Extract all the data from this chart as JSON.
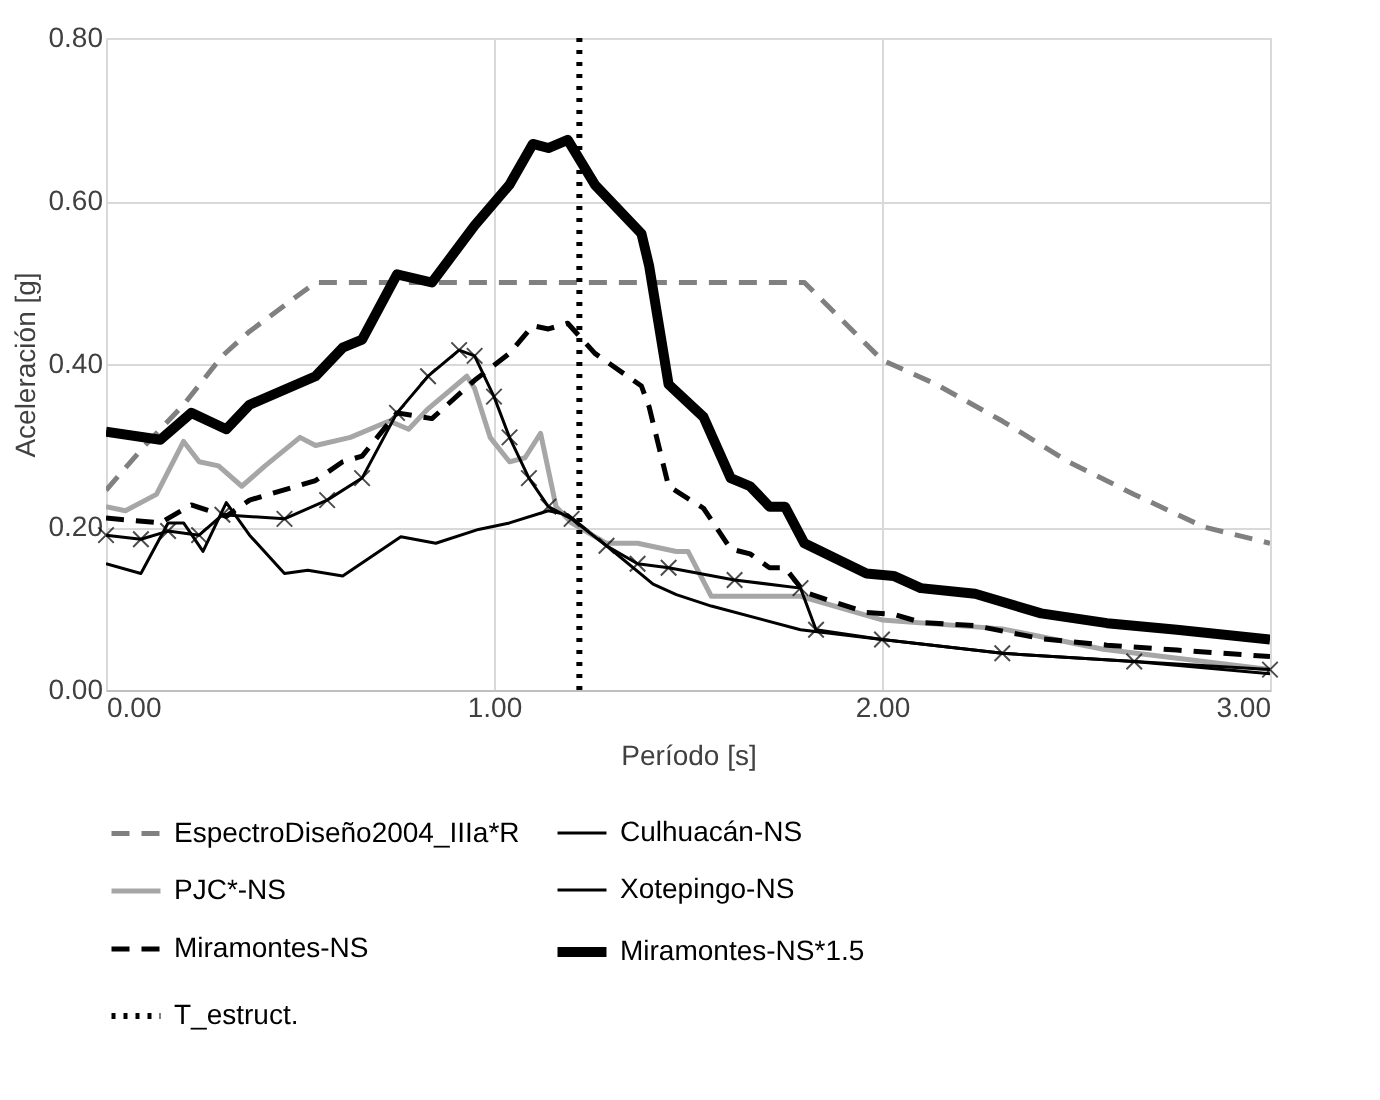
{
  "chart_data": {
    "type": "line",
    "xlabel": "Período [s]",
    "ylabel": "Aceleración [g]",
    "xlim": [
      0,
      3
    ],
    "xticks": [
      {
        "value": 0,
        "label": "0.00"
      },
      {
        "value": 1,
        "label": "1.00"
      },
      {
        "value": 2,
        "label": "2.00"
      },
      {
        "value": 3,
        "label": "3.00"
      }
    ],
    "ylim": [
      0,
      0.8
    ],
    "yticks": [
      {
        "value": 0,
        "label": "0.00"
      },
      {
        "value": 0.2,
        "label": "0.20"
      },
      {
        "value": 0.4,
        "label": "0.40"
      },
      {
        "value": 0.6,
        "label": "0.60"
      },
      {
        "value": 0.8,
        "label": "0.80"
      }
    ],
    "grid": true,
    "legend": "bottom",
    "marker": "none",
    "series": [
      {
        "name": "EspectroDiseño2004_IIIa*R",
        "color": "#808080",
        "line_style": "dashed",
        "x": [
          0,
          0.1,
          0.2,
          0.3,
          0.37,
          0.54,
          1.8,
          2.0,
          2.14,
          2.31,
          2.48,
          2.65,
          2.83,
          3.0
        ],
        "values": [
          0.245,
          0.3,
          0.35,
          0.41,
          0.44,
          0.5,
          0.5,
          0.405,
          0.375,
          0.33,
          0.28,
          0.24,
          0.2,
          0.18
        ]
      },
      {
        "name": "Culhuacán-NS",
        "color": "#000000",
        "line_style": "solid",
        "x": [
          0,
          0.09,
          0.16,
          0.2,
          0.25,
          0.31,
          0.37,
          0.46,
          0.52,
          0.61,
          0.76,
          0.85,
          0.96,
          1.04,
          1.14,
          1.19,
          1.29,
          1.41,
          1.47,
          1.56,
          1.79,
          2.0,
          2.31,
          2.65,
          3.0
        ],
        "values": [
          0.155,
          0.143,
          0.205,
          0.205,
          0.17,
          0.23,
          0.19,
          0.143,
          0.147,
          0.14,
          0.188,
          0.18,
          0.197,
          0.205,
          0.22,
          0.215,
          0.177,
          0.13,
          0.117,
          0.103,
          0.074,
          0.062,
          0.045,
          0.035,
          0.02
        ]
      },
      {
        "name": "PJC*-NS",
        "color": "#a6a6a6",
        "line_style": "solid",
        "x": [
          0,
          0.05,
          0.13,
          0.2,
          0.24,
          0.29,
          0.35,
          0.41,
          0.5,
          0.54,
          0.63,
          0.73,
          0.78,
          0.83,
          0.93,
          0.95,
          0.99,
          1.04,
          1.08,
          1.12,
          1.16,
          1.2,
          1.29,
          1.37,
          1.47,
          1.5,
          1.56,
          1.79,
          2.0,
          2.31,
          2.57,
          3.0
        ],
        "values": [
          0.225,
          0.22,
          0.24,
          0.305,
          0.28,
          0.275,
          0.25,
          0.275,
          0.31,
          0.3,
          0.31,
          0.33,
          0.32,
          0.345,
          0.385,
          0.37,
          0.31,
          0.28,
          0.285,
          0.315,
          0.225,
          0.205,
          0.18,
          0.18,
          0.17,
          0.17,
          0.115,
          0.115,
          0.086,
          0.075,
          0.05,
          0.025
        ]
      },
      {
        "name": "Xotepingo-NS",
        "color": "#000000",
        "line_style": "solid",
        "marker": "cross",
        "x": [
          0,
          0.09,
          0.16,
          0.24,
          0.3,
          0.46,
          0.57,
          0.66,
          0.75,
          0.83,
          0.91,
          0.95,
          1.0,
          1.04,
          1.09,
          1.14,
          1.2,
          1.29,
          1.37,
          1.45,
          1.62,
          1.79,
          1.83,
          2.0,
          2.31,
          2.65,
          3.0
        ],
        "values": [
          0.19,
          0.185,
          0.195,
          0.19,
          0.215,
          0.21,
          0.233,
          0.26,
          0.34,
          0.385,
          0.417,
          0.41,
          0.36,
          0.31,
          0.26,
          0.225,
          0.21,
          0.177,
          0.155,
          0.15,
          0.135,
          0.125,
          0.074,
          0.062,
          0.045,
          0.035,
          0.025
        ]
      },
      {
        "name": "Miramontes-NS",
        "color": "#000000",
        "line_style": "dashed",
        "x": [
          0,
          0.14,
          0.22,
          0.31,
          0.37,
          0.54,
          0.61,
          0.66,
          0.75,
          0.84,
          0.95,
          1.04,
          1.1,
          1.14,
          1.19,
          1.26,
          1.38,
          1.4,
          1.45,
          1.54,
          1.61,
          1.66,
          1.71,
          1.75,
          1.8,
          1.96,
          2.03,
          2.1,
          2.24,
          2.41,
          2.58,
          2.76,
          3.0
        ],
        "values": [
          0.211,
          0.205,
          0.227,
          0.213,
          0.233,
          0.257,
          0.28,
          0.287,
          0.34,
          0.333,
          0.38,
          0.413,
          0.447,
          0.443,
          0.45,
          0.413,
          0.373,
          0.347,
          0.25,
          0.223,
          0.173,
          0.167,
          0.15,
          0.15,
          0.12,
          0.095,
          0.093,
          0.083,
          0.079,
          0.063,
          0.055,
          0.049,
          0.041
        ]
      },
      {
        "name": "Miramontes-NS*1.5",
        "color": "#000000",
        "line_style": "solid",
        "x": [
          0,
          0.14,
          0.22,
          0.31,
          0.37,
          0.54,
          0.61,
          0.66,
          0.75,
          0.84,
          0.95,
          1.04,
          1.1,
          1.14,
          1.19,
          1.26,
          1.38,
          1.4,
          1.45,
          1.54,
          1.61,
          1.66,
          1.71,
          1.75,
          1.8,
          1.96,
          2.03,
          2.1,
          2.24,
          2.41,
          2.58,
          2.76,
          3.0
        ],
        "values": [
          0.317,
          0.307,
          0.34,
          0.32,
          0.35,
          0.385,
          0.42,
          0.43,
          0.51,
          0.5,
          0.57,
          0.62,
          0.67,
          0.665,
          0.675,
          0.62,
          0.56,
          0.52,
          0.375,
          0.335,
          0.26,
          0.25,
          0.225,
          0.225,
          0.18,
          0.143,
          0.14,
          0.125,
          0.118,
          0.094,
          0.082,
          0.074,
          0.062
        ]
      },
      {
        "name": "T_estruct.",
        "color": "#000000",
        "line_style": "dotted",
        "x": [
          1.22,
          1.22
        ],
        "values": [
          0,
          0.8
        ]
      }
    ]
  }
}
